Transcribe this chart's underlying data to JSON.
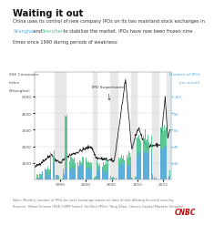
{
  "title": "Waiting it out",
  "subtitle_line1": "China uses its control of new company IPOs on its two mainland stock exchanges in",
  "subtitle_line2a": " to stabilize the market. IPOs have now been frozen nine",
  "subtitle_line2b_shanghai": "Shanghai",
  "subtitle_line2b_and": " and ",
  "subtitle_line2b_shenzhen": "Shenzhen",
  "subtitle_line3": "times since 1990 during periods of weakness:",
  "ylabel_left1": "SSE Composite",
  "ylabel_left2": "Index",
  "ylabel_left3": "(Shanghai)",
  "ylabel_right1": "Number of IPOs",
  "ylabel_right2": "per month",
  "ipo_suspension_label": "IPO Suspensions",
  "background_color": "#ffffff",
  "plot_bg_color": "#ffffff",
  "grid_color": "#cccccc",
  "sse_line_color": "#111111",
  "shanghai_bar_color": "#5aabe0",
  "shenzhen_bar_color": "#4dc48a",
  "suspension_color": "#e8e8e8",
  "suspension_periods": [
    [
      1993.9,
      1994.8
    ],
    [
      1994.9,
      1995.6
    ],
    [
      1995.7,
      1996.1
    ],
    [
      2001.4,
      2002.0
    ],
    [
      2004.8,
      2005.3
    ],
    [
      2005.4,
      2006.1
    ],
    [
      2008.7,
      2009.8
    ],
    [
      2012.8,
      2014.1
    ],
    [
      2015.6,
      2016.2
    ]
  ],
  "ylim_left": [
    0,
    6500
  ],
  "ylim_right": [
    0,
    130
  ],
  "yticks_left": [
    1000,
    2000,
    3000,
    4000,
    5000
  ],
  "yticks_right": [
    20,
    40,
    60,
    80,
    100
  ],
  "xlim": [
    1990.0,
    2016.5
  ],
  "xtick_years": [
    1995,
    2000,
    2005,
    2010,
    2015
  ],
  "footnote1": "Note: Monthly number of IPOs for each exchange based on date of first offering for each security.",
  "footnote2": "Sources: Yahoo Finance (SSE COMP Index); FactSet (IPOs); Yong Zhao, China's Capital Markets (freezes)",
  "cnbc_color": "#cc0000",
  "title_color": "#111111",
  "subtitle_color": "#333333",
  "shanghai_label_color": "#5aabe0",
  "shenzhen_label_color": "#4dc48a",
  "right_axis_color": "#5aabe0"
}
